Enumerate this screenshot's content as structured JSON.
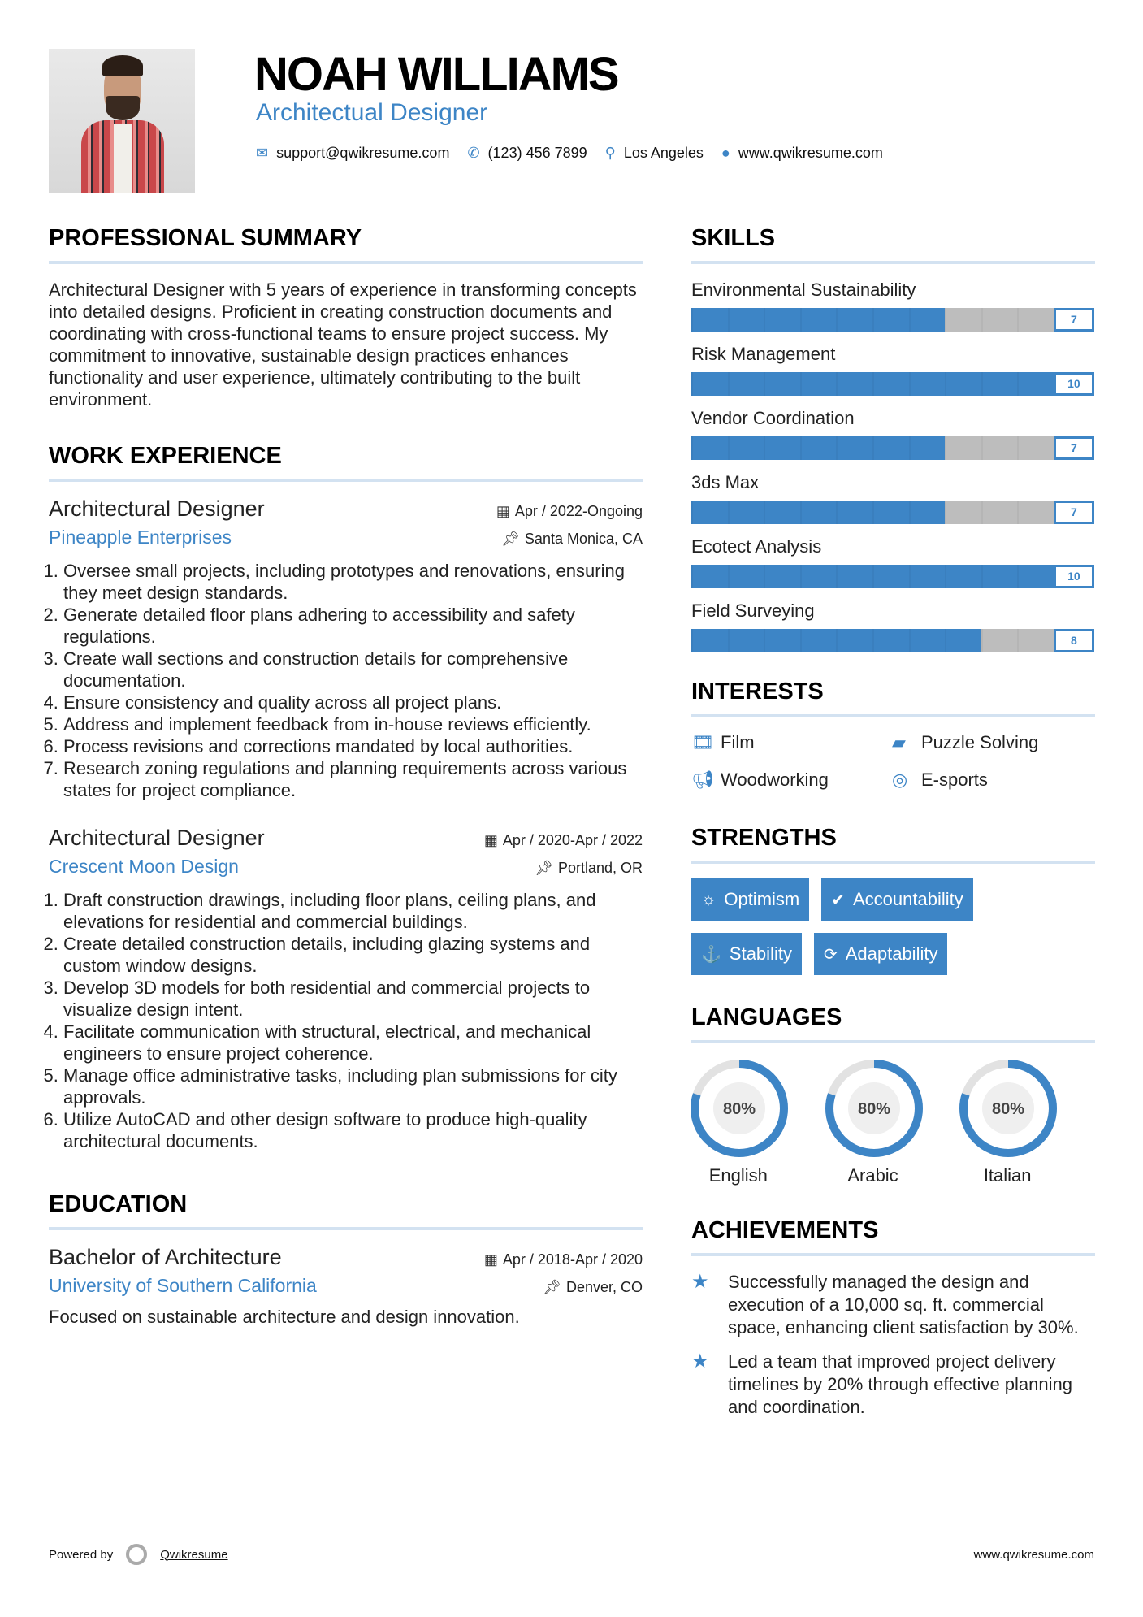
{
  "header": {
    "name": "NOAH WILLIAMS",
    "title": "Architectual Designer",
    "contacts": {
      "email": "support@qwikresume.com",
      "phone": "(123) 456 7899",
      "location": "Los Angeles",
      "website": "www.qwikresume.com"
    }
  },
  "summary": {
    "heading": "PROFESSIONAL SUMMARY",
    "text": "Architectural Designer with 5 years of experience in transforming concepts into detailed designs. Proficient in creating construction documents and coordinating with cross-functional teams to ensure project success. My commitment to innovative, sustainable design practices enhances functionality and user experience, ultimately contributing to the built environment."
  },
  "experience": {
    "heading": "WORK EXPERIENCE",
    "jobs": [
      {
        "title": "Architectural Designer",
        "company": "Pineapple Enterprises",
        "date": "Apr / 2022-Ongoing",
        "location": "Santa Monica, CA",
        "bullets": [
          "Oversee small projects, including prototypes and renovations, ensuring they meet design standards.",
          "Generate detailed floor plans adhering to accessibility and safety regulations.",
          "Create wall sections and construction details for comprehensive documentation.",
          "Ensure consistency and quality across all project plans.",
          "Address and implement feedback from in-house reviews efficiently.",
          "Process revisions and corrections mandated by local authorities.",
          "Research zoning regulations and planning requirements across various states for project compliance."
        ]
      },
      {
        "title": "Architectural Designer",
        "company": "Crescent Moon Design",
        "date": "Apr / 2020-Apr / 2022",
        "location": "Portland, OR",
        "bullets": [
          "Draft construction drawings, including floor plans, ceiling plans, and elevations for residential and commercial buildings.",
          "Create detailed construction details, including glazing systems and custom window designs.",
          "Develop 3D models for both residential and commercial projects to visualize design intent.",
          "Facilitate communication with structural, electrical, and mechanical engineers to ensure project coherence.",
          "Manage office administrative tasks, including plan submissions for city approvals.",
          "Utilize AutoCAD and other design software to produce high-quality architectural documents."
        ]
      }
    ]
  },
  "education": {
    "heading": "EDUCATION",
    "degree": "Bachelor of Architecture",
    "school": "University of Southern California",
    "date": "Apr / 2018-Apr / 2020",
    "location": "Denver, CO",
    "description": "Focused on sustainable architecture and design innovation."
  },
  "skills": {
    "heading": "SKILLS",
    "max": 10,
    "items": [
      {
        "label": "Environmental Sustainability",
        "level": 7
      },
      {
        "label": "Risk Management",
        "level": 10
      },
      {
        "label": "Vendor Coordination",
        "level": 7
      },
      {
        "label": "3ds Max",
        "level": 7
      },
      {
        "label": "Ecotect Analysis",
        "level": 10
      },
      {
        "label": "Field Surveying",
        "level": 8
      }
    ]
  },
  "interests": {
    "heading": "INTERESTS",
    "items": [
      {
        "label": "Film",
        "icon": "film-icon"
      },
      {
        "label": "Puzzle Solving",
        "icon": "book-icon"
      },
      {
        "label": "Woodworking",
        "icon": "bullhorn-icon"
      },
      {
        "label": "E-sports",
        "icon": "life-ring-icon"
      }
    ]
  },
  "strengths": {
    "heading": "STRENGTHS",
    "items": [
      {
        "label": "Optimism",
        "icon": "sun-icon"
      },
      {
        "label": "Accountability",
        "icon": "check-circle-icon"
      },
      {
        "label": "Stability",
        "icon": "anchor-icon"
      },
      {
        "label": "Adaptability",
        "icon": "refresh-icon"
      }
    ]
  },
  "languages": {
    "heading": "LANGUAGES",
    "items": [
      {
        "label": "English",
        "percent": 80,
        "percent_label": "80%"
      },
      {
        "label": "Arabic",
        "percent": 80,
        "percent_label": "80%"
      },
      {
        "label": "Italian",
        "percent": 80,
        "percent_label": "80%"
      }
    ]
  },
  "achievements": {
    "heading": "ACHIEVEMENTS",
    "items": [
      "Successfully managed the design and execution of a 10,000 sq. ft. commercial space, enhancing client satisfaction by 30%.",
      "Led a team that improved project delivery timelines by 20% through effective planning and coordination."
    ]
  },
  "footer": {
    "powered_by": "Powered by",
    "brand": "Qwikresume",
    "website": "www.qwikresume.com"
  },
  "colors": {
    "accent": "#3d85c6",
    "bar_empty": "#bdbdbd",
    "divider": "#d3e2f1"
  }
}
